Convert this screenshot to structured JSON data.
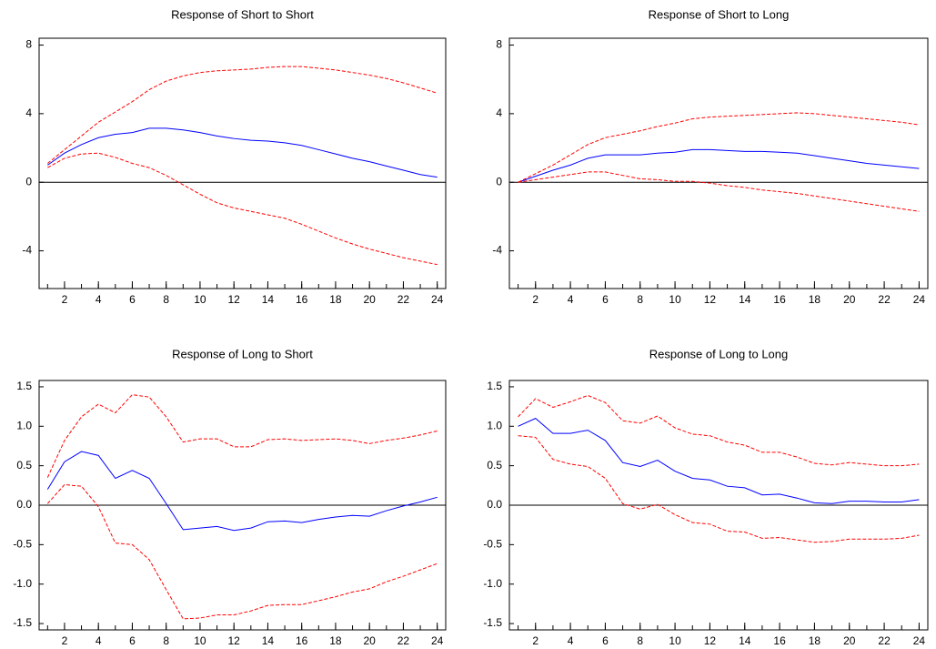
{
  "chart_data": [
    {
      "type": "line",
      "title": "Response of Short to Short",
      "x": [
        1,
        2,
        3,
        4,
        5,
        6,
        7,
        8,
        9,
        10,
        11,
        12,
        13,
        14,
        15,
        16,
        17,
        18,
        19,
        20,
        21,
        22,
        23,
        24
      ],
      "series": [
        {
          "color": "#0000ff",
          "dash": false,
          "values": [
            1.0,
            1.7,
            2.2,
            2.6,
            2.8,
            2.9,
            3.15,
            3.15,
            3.05,
            2.9,
            2.7,
            2.55,
            2.45,
            2.4,
            2.3,
            2.15,
            1.9,
            1.65,
            1.4,
            1.2,
            0.95,
            0.7,
            0.45,
            0.3
          ]
        },
        {
          "color": "#ff0000",
          "dash": true,
          "values": [
            1.1,
            1.9,
            2.7,
            3.5,
            4.1,
            4.7,
            5.4,
            5.9,
            6.2,
            6.4,
            6.5,
            6.55,
            6.6,
            6.7,
            6.75,
            6.75,
            6.65,
            6.55,
            6.4,
            6.25,
            6.05,
            5.8,
            5.5,
            5.2
          ]
        },
        {
          "color": "#ff0000",
          "dash": true,
          "values": [
            0.85,
            1.4,
            1.65,
            1.7,
            1.45,
            1.1,
            0.85,
            0.4,
            -0.15,
            -0.7,
            -1.2,
            -1.5,
            -1.7,
            -1.9,
            -2.1,
            -2.45,
            -2.85,
            -3.25,
            -3.6,
            -3.9,
            -4.15,
            -4.4,
            -4.6,
            -4.8
          ]
        }
      ],
      "xlim": [
        0.5,
        24.5
      ],
      "ylim": [
        -6.2,
        8.4
      ],
      "xticks": [
        2,
        4,
        6,
        8,
        10,
        12,
        14,
        16,
        18,
        20,
        22,
        24
      ],
      "yticks": [
        -4,
        0,
        4,
        8
      ]
    },
    {
      "type": "line",
      "title": "Response of Short to Long",
      "x": [
        1,
        2,
        3,
        4,
        5,
        6,
        7,
        8,
        9,
        10,
        11,
        12,
        13,
        14,
        15,
        16,
        17,
        18,
        19,
        20,
        21,
        22,
        23,
        24
      ],
      "series": [
        {
          "color": "#0000ff",
          "dash": false,
          "values": [
            0.0,
            0.35,
            0.7,
            1.0,
            1.4,
            1.6,
            1.6,
            1.6,
            1.7,
            1.75,
            1.9,
            1.9,
            1.85,
            1.8,
            1.8,
            1.75,
            1.7,
            1.55,
            1.4,
            1.25,
            1.1,
            1.0,
            0.9,
            0.8
          ]
        },
        {
          "color": "#ff0000",
          "dash": true,
          "values": [
            0.0,
            0.5,
            1.0,
            1.6,
            2.2,
            2.6,
            2.8,
            3.0,
            3.25,
            3.45,
            3.7,
            3.8,
            3.85,
            3.9,
            3.95,
            4.0,
            4.05,
            4.0,
            3.9,
            3.8,
            3.7,
            3.6,
            3.5,
            3.35
          ]
        },
        {
          "color": "#ff0000",
          "dash": true,
          "values": [
            0.0,
            0.15,
            0.3,
            0.45,
            0.6,
            0.6,
            0.4,
            0.2,
            0.15,
            0.05,
            0.05,
            -0.05,
            -0.2,
            -0.3,
            -0.45,
            -0.55,
            -0.65,
            -0.8,
            -0.95,
            -1.1,
            -1.25,
            -1.4,
            -1.55,
            -1.7
          ]
        }
      ],
      "xlim": [
        0.5,
        24.5
      ],
      "ylim": [
        -6.2,
        8.4
      ],
      "xticks": [
        2,
        4,
        6,
        8,
        10,
        12,
        14,
        16,
        18,
        20,
        22,
        24
      ],
      "yticks": [
        -4,
        0,
        4,
        8
      ]
    },
    {
      "type": "line",
      "title": "Response of Long to Short",
      "x": [
        1,
        2,
        3,
        4,
        5,
        6,
        7,
        8,
        9,
        10,
        11,
        12,
        13,
        14,
        15,
        16,
        17,
        18,
        19,
        20,
        21,
        22,
        23,
        24
      ],
      "series": [
        {
          "color": "#0000ff",
          "dash": false,
          "values": [
            0.2,
            0.55,
            0.68,
            0.63,
            0.34,
            0.44,
            0.34,
            0.02,
            -0.31,
            -0.29,
            -0.27,
            -0.32,
            -0.29,
            -0.21,
            -0.2,
            -0.22,
            -0.18,
            -0.15,
            -0.13,
            -0.14,
            -0.07,
            -0.01,
            0.04,
            0.1
          ]
        },
        {
          "color": "#ff0000",
          "dash": true,
          "values": [
            0.35,
            0.82,
            1.12,
            1.28,
            1.17,
            1.4,
            1.37,
            1.12,
            0.8,
            0.84,
            0.84,
            0.74,
            0.74,
            0.83,
            0.84,
            0.82,
            0.83,
            0.84,
            0.82,
            0.78,
            0.82,
            0.85,
            0.89,
            0.94
          ]
        },
        {
          "color": "#ff0000",
          "dash": true,
          "values": [
            0.02,
            0.26,
            0.24,
            -0.02,
            -0.48,
            -0.5,
            -0.69,
            -1.07,
            -1.44,
            -1.43,
            -1.39,
            -1.39,
            -1.34,
            -1.27,
            -1.26,
            -1.26,
            -1.21,
            -1.16,
            -1.1,
            -1.06,
            -0.97,
            -0.9,
            -0.82,
            -0.74
          ]
        }
      ],
      "xlim": [
        0.5,
        24.5
      ],
      "ylim": [
        -1.58,
        1.58
      ],
      "xticks": [
        2,
        4,
        6,
        8,
        10,
        12,
        14,
        16,
        18,
        20,
        22,
        24
      ],
      "yticks": [
        -1.5,
        {
          "value": -1.0,
          "label": "-1.0"
        },
        -0.5,
        {
          "value": 0,
          "label": "0.0"
        },
        0.5,
        {
          "value": 1.0,
          "label": "1.0"
        },
        1.5
      ]
    },
    {
      "type": "line",
      "title": "Response of Long to Long",
      "x": [
        1,
        2,
        3,
        4,
        5,
        6,
        7,
        8,
        9,
        10,
        11,
        12,
        13,
        14,
        15,
        16,
        17,
        18,
        19,
        20,
        21,
        22,
        23,
        24
      ],
      "series": [
        {
          "color": "#0000ff",
          "dash": false,
          "values": [
            1.0,
            1.1,
            0.91,
            0.91,
            0.95,
            0.82,
            0.54,
            0.49,
            0.57,
            0.43,
            0.34,
            0.32,
            0.24,
            0.22,
            0.13,
            0.14,
            0.09,
            0.03,
            0.02,
            0.05,
            0.05,
            0.04,
            0.04,
            0.07
          ]
        },
        {
          "color": "#ff0000",
          "dash": true,
          "values": [
            1.12,
            1.35,
            1.24,
            1.31,
            1.39,
            1.3,
            1.07,
            1.04,
            1.13,
            0.98,
            0.9,
            0.88,
            0.8,
            0.76,
            0.67,
            0.67,
            0.61,
            0.53,
            0.51,
            0.54,
            0.52,
            0.5,
            0.5,
            0.52
          ]
        },
        {
          "color": "#ff0000",
          "dash": true,
          "values": [
            0.88,
            0.86,
            0.58,
            0.52,
            0.49,
            0.34,
            0.02,
            -0.05,
            0.01,
            -0.12,
            -0.22,
            -0.24,
            -0.33,
            -0.34,
            -0.42,
            -0.41,
            -0.44,
            -0.47,
            -0.46,
            -0.43,
            -0.43,
            -0.43,
            -0.42,
            -0.38
          ]
        }
      ],
      "xlim": [
        0.5,
        24.5
      ],
      "ylim": [
        -1.58,
        1.58
      ],
      "xticks": [
        2,
        4,
        6,
        8,
        10,
        12,
        14,
        16,
        18,
        20,
        22,
        24
      ],
      "yticks": [
        -1.5,
        {
          "value": -1.0,
          "label": "-1.0"
        },
        -0.5,
        {
          "value": 0,
          "label": "0.0"
        },
        0.5,
        {
          "value": 1.0,
          "label": "1.0"
        },
        1.5
      ]
    }
  ]
}
